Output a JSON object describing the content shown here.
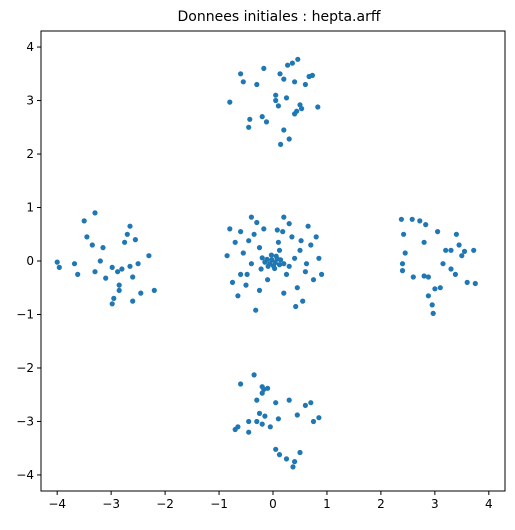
{
  "chart_data": {
    "type": "scatter",
    "title": "Donnees initiales : hepta.arff",
    "xlabel": "",
    "ylabel": "",
    "xlim": [
      -4.3,
      4.3
    ],
    "ylim": [
      -4.3,
      4.3
    ],
    "xticks": [
      -4,
      -3,
      -2,
      -1,
      0,
      1,
      2,
      3,
      4
    ],
    "yticks": [
      -4,
      -3,
      -2,
      -1,
      0,
      1,
      2,
      3,
      4
    ],
    "grid": false,
    "legend": "none",
    "marker_color": "#1f77b4",
    "series": [
      {
        "points": [
          [
            -0.02,
            0.02
          ],
          [
            0.04,
            -0.03
          ],
          [
            -0.06,
            -0.05
          ],
          [
            0.08,
            0.04
          ],
          [
            0.01,
            -0.09
          ],
          [
            -0.11,
            0.03
          ],
          [
            0.12,
            -0.07
          ],
          [
            -0.03,
            0.11
          ],
          [
            0.06,
            0.09
          ],
          [
            -0.09,
            -0.1
          ],
          [
            0.14,
            0.02
          ],
          [
            -0.15,
            -0.02
          ],
          [
            0.03,
            -0.14
          ],
          [
            0.2,
            -0.05
          ],
          [
            -0.2,
            0.06
          ],
          [
            0.18,
            0.55
          ],
          [
            -0.17,
            0.6
          ],
          [
            0.35,
            0.45
          ],
          [
            -0.45,
            0.38
          ],
          [
            0.5,
            0.2
          ],
          [
            -0.55,
            0.15
          ],
          [
            0.6,
            -0.2
          ],
          [
            -0.6,
            -0.25
          ],
          [
            0.45,
            -0.5
          ],
          [
            -0.5,
            -0.45
          ],
          [
            0.2,
            -0.6
          ],
          [
            -0.25,
            -0.55
          ],
          [
            0.7,
            0.3
          ],
          [
            -0.7,
            0.35
          ],
          [
            0.75,
            -0.35
          ],
          [
            -0.75,
            -0.4
          ],
          [
            0.3,
            0.7
          ],
          [
            -0.3,
            0.72
          ],
          [
            0.1,
            0.35
          ],
          [
            -0.1,
            -0.35
          ],
          [
            0.4,
            0.05
          ],
          [
            -0.4,
            -0.05
          ],
          [
            0.25,
            -0.25
          ],
          [
            -0.25,
            0.25
          ],
          [
            0.55,
            -0.75
          ],
          [
            -0.6,
            0.55
          ],
          [
            0.8,
            0.45
          ],
          [
            -0.8,
            0.6
          ],
          [
            0.65,
            0.65
          ],
          [
            -0.65,
            -0.65
          ],
          [
            0.9,
            -0.25
          ],
          [
            0.42,
            -0.85
          ],
          [
            -0.32,
            -0.92
          ],
          [
            0.08,
            0.58
          ],
          [
            -0.4,
            0.82
          ],
          [
            0.52,
            0.38
          ],
          [
            -0.22,
            -0.15
          ],
          [
            0.3,
            -0.1
          ],
          [
            0.12,
            0.2
          ],
          [
            -0.35,
            0.5
          ],
          [
            0.62,
            -0.05
          ],
          [
            -0.48,
            -0.25
          ],
          [
            0.85,
            0.05
          ],
          [
            -0.85,
            0.1
          ],
          [
            0.2,
            0.82
          ],
          [
            0.36,
            3.7
          ],
          [
            0.46,
            3.77
          ],
          [
            0.73,
            3.47
          ],
          [
            0.67,
            3.45
          ],
          [
            0.27,
            3.66
          ],
          [
            -0.17,
            3.6
          ],
          [
            0.05,
            3.1
          ],
          [
            -0.6,
            3.5
          ],
          [
            -0.3,
            3.3
          ],
          [
            0.25,
            3.05
          ],
          [
            0.4,
            3.35
          ],
          [
            0.6,
            3.3
          ],
          [
            -0.55,
            3.35
          ],
          [
            0.05,
            3.0
          ],
          [
            0.5,
            2.92
          ],
          [
            0.83,
            2.88
          ],
          [
            -0.8,
            2.97
          ],
          [
            0.44,
            2.8
          ],
          [
            -0.43,
            2.65
          ],
          [
            0.53,
            2.85
          ],
          [
            0.4,
            2.75
          ],
          [
            -0.12,
            2.6
          ],
          [
            0.2,
            2.45
          ],
          [
            0.3,
            2.28
          ],
          [
            0.14,
            2.18
          ],
          [
            0.13,
            3.5
          ],
          [
            -0.45,
            2.5
          ],
          [
            0.1,
            2.9
          ],
          [
            -0.2,
            2.7
          ],
          [
            0.2,
            3.4
          ],
          [
            -0.35,
            -2.13
          ],
          [
            -0.6,
            -2.3
          ],
          [
            -0.2,
            -2.35
          ],
          [
            -0.17,
            -2.4
          ],
          [
            -0.3,
            -2.6
          ],
          [
            -0.2,
            -2.47
          ],
          [
            -0.1,
            -2.38
          ],
          [
            0.05,
            -2.65
          ],
          [
            0.3,
            -2.6
          ],
          [
            0.6,
            -2.7
          ],
          [
            0.7,
            -2.65
          ],
          [
            0.45,
            -2.88
          ],
          [
            0.85,
            -2.93
          ],
          [
            0.75,
            -3.0
          ],
          [
            0.1,
            -2.95
          ],
          [
            -0.25,
            -2.85
          ],
          [
            -0.15,
            -2.9
          ],
          [
            -0.3,
            -3.0
          ],
          [
            -0.45,
            -3.0
          ],
          [
            -0.65,
            -3.1
          ],
          [
            -0.7,
            -3.15
          ],
          [
            -0.45,
            -3.2
          ],
          [
            -0.2,
            -3.05
          ],
          [
            -0.05,
            -3.1
          ],
          [
            0.05,
            -3.52
          ],
          [
            0.12,
            -3.62
          ],
          [
            0.25,
            -3.7
          ],
          [
            0.4,
            -3.75
          ],
          [
            0.37,
            -3.85
          ],
          [
            0.5,
            -3.58
          ],
          [
            -4.0,
            -0.02
          ],
          [
            -3.96,
            -0.12
          ],
          [
            -3.68,
            -0.05
          ],
          [
            -3.62,
            -0.25
          ],
          [
            -3.5,
            0.75
          ],
          [
            -3.45,
            0.45
          ],
          [
            -3.3,
            0.9
          ],
          [
            -3.35,
            0.3
          ],
          [
            -3.15,
            0.25
          ],
          [
            -3.3,
            -0.2
          ],
          [
            -3.1,
            -0.32
          ],
          [
            -2.98,
            -0.12
          ],
          [
            -2.88,
            -0.2
          ],
          [
            -2.8,
            -0.15
          ],
          [
            -2.65,
            -0.1
          ],
          [
            -2.5,
            -0.05
          ],
          [
            -2.75,
            0.35
          ],
          [
            -2.65,
            0.65
          ],
          [
            -2.7,
            0.5
          ],
          [
            -2.55,
            0.4
          ],
          [
            -2.3,
            0.1
          ],
          [
            -2.2,
            -0.55
          ],
          [
            -2.45,
            -0.6
          ],
          [
            -2.6,
            -0.75
          ],
          [
            -2.85,
            -0.55
          ],
          [
            -2.95,
            -0.7
          ],
          [
            -2.98,
            -0.8
          ],
          [
            -3.2,
            0.0
          ],
          [
            -2.85,
            -0.45
          ],
          [
            -2.6,
            -0.3
          ],
          [
            2.38,
            0.78
          ],
          [
            2.42,
            0.5
          ],
          [
            2.58,
            0.78
          ],
          [
            2.72,
            0.75
          ],
          [
            2.83,
            0.68
          ],
          [
            2.8,
            0.35
          ],
          [
            2.45,
            0.15
          ],
          [
            2.4,
            -0.05
          ],
          [
            2.4,
            -0.18
          ],
          [
            2.6,
            -0.3
          ],
          [
            2.8,
            -0.28
          ],
          [
            2.88,
            -0.3
          ],
          [
            2.88,
            -0.65
          ],
          [
            3.0,
            -0.52
          ],
          [
            2.95,
            -0.82
          ],
          [
            2.97,
            -0.98
          ],
          [
            3.1,
            -0.5
          ],
          [
            3.2,
            0.2
          ],
          [
            3.3,
            0.2
          ],
          [
            3.45,
            0.3
          ],
          [
            3.4,
            0.5
          ],
          [
            3.5,
            0.1
          ],
          [
            3.6,
            -0.4
          ],
          [
            3.72,
            0.2
          ],
          [
            3.75,
            -0.42
          ],
          [
            3.3,
            -0.15
          ],
          [
            3.05,
            0.55
          ],
          [
            3.15,
            -0.05
          ],
          [
            3.55,
            0.18
          ],
          [
            3.38,
            -0.25
          ]
        ]
      }
    ]
  }
}
